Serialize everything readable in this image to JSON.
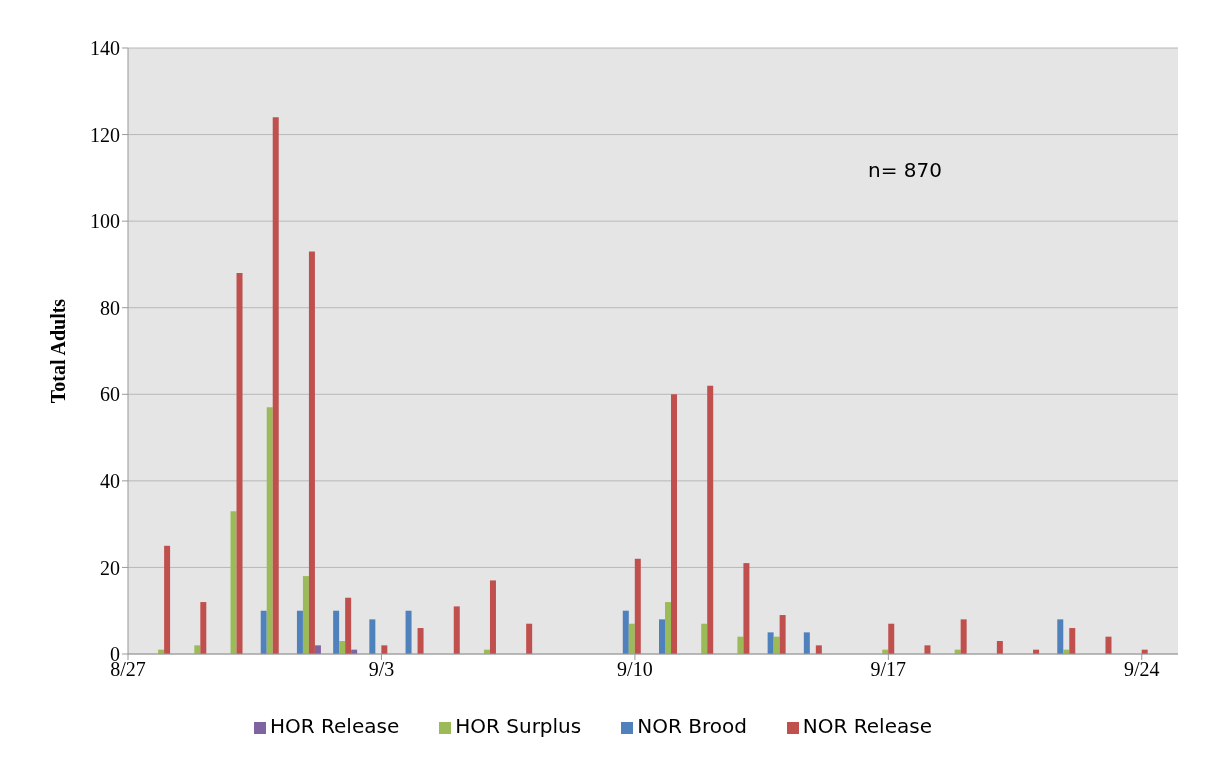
{
  "chart_data": {
    "type": "bar",
    "ylabel": "Total Adults",
    "annotations": [
      "n= 870"
    ],
    "x": [
      "--08-28",
      "--08-29",
      "--08-30",
      "--08-31",
      "--09-01",
      "--09-02",
      "--09-03",
      "--09-04",
      "--09-05",
      "--09-06",
      "--09-07",
      "--09-08",
      "--09-09",
      "--09-10",
      "--09-11",
      "--09-12",
      "--09-13",
      "--09-14",
      "--09-15",
      "--09-16",
      "--09-17",
      "--09-18",
      "--09-19",
      "--09-20",
      "--09-21",
      "--09-22",
      "--09-23",
      "--09-24"
    ],
    "series": [
      {
        "name": "NOR Brood",
        "color": "#4f81bd",
        "values": [
          null,
          null,
          null,
          10,
          10,
          10,
          8,
          10,
          null,
          null,
          null,
          null,
          null,
          10,
          8,
          null,
          null,
          5,
          5,
          null,
          null,
          null,
          null,
          null,
          null,
          8,
          null,
          null
        ]
      },
      {
        "name": "HOR Surplus",
        "color": "#9bbb59",
        "values": [
          1,
          2,
          33,
          57,
          18,
          3,
          null,
          null,
          null,
          1,
          null,
          null,
          null,
          7,
          12,
          7,
          4,
          4,
          null,
          null,
          1,
          null,
          1,
          null,
          null,
          1,
          null,
          null
        ]
      },
      {
        "name": "NOR Release",
        "color": "#c0504d",
        "values": [
          25,
          12,
          88,
          124,
          93,
          13,
          2,
          6,
          11,
          17,
          7,
          null,
          null,
          22,
          60,
          62,
          21,
          9,
          2,
          null,
          7,
          2,
          8,
          3,
          1,
          6,
          4,
          1
        ]
      },
      {
        "name": "HOR Release",
        "color": "#8064a2",
        "values": [
          null,
          null,
          null,
          null,
          2,
          1,
          null,
          null,
          null,
          null,
          null,
          null,
          null,
          null,
          null,
          null,
          null,
          null,
          null,
          null,
          null,
          null,
          null,
          null,
          null,
          null,
          null,
          null
        ]
      }
    ],
    "xlim": [
      "--08-27",
      "--09-25"
    ],
    "xticks": [
      {
        "value": "--08-27",
        "label": "8/27"
      },
      {
        "value": "--09-03",
        "label": "9/3"
      },
      {
        "value": "--09-10",
        "label": "9/10"
      },
      {
        "value": "--09-17",
        "label": "9/17"
      },
      {
        "value": "--09-24",
        "label": "9/24"
      }
    ],
    "ylim": [
      0,
      140
    ],
    "yticks": [
      0,
      20,
      40,
      60,
      80,
      100,
      120,
      140
    ],
    "grid": "y",
    "legend": "bottom"
  }
}
